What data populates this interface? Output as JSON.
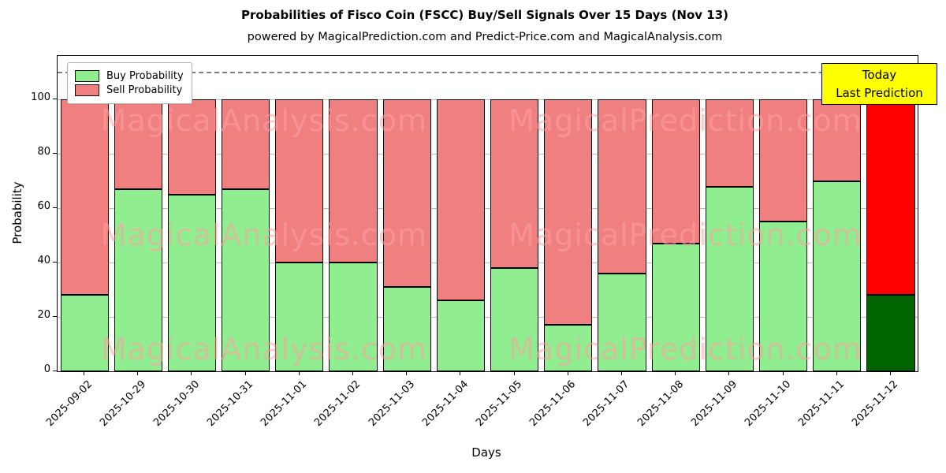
{
  "title": "Probabilities of Fisco Coin (FSCC) Buy/Sell Signals Over 15 Days (Nov 13)",
  "subtitle": "powered by MagicalPrediction.com and Predict-Price.com and MagicalAnalysis.com",
  "chart_data": {
    "type": "bar",
    "stacked": true,
    "title": "Probabilities of Fisco Coin (FSCC) Buy/Sell Signals Over 15 Days (Nov 13)",
    "xlabel": "Days",
    "ylabel": "Probability",
    "ylim": [
      0,
      116
    ],
    "yticks": [
      0,
      20,
      40,
      60,
      80,
      100
    ],
    "grid": true,
    "dashed_line_y": 110,
    "legend_position": "upper left",
    "categories": [
      "2025-09-02",
      "2025-10-29",
      "2025-10-30",
      "2025-10-31",
      "2025-11-01",
      "2025-11-02",
      "2025-11-03",
      "2025-11-04",
      "2025-11-05",
      "2025-11-06",
      "2025-11-07",
      "2025-11-08",
      "2025-11-09",
      "2025-11-10",
      "2025-11-11",
      "2025-11-12"
    ],
    "series": [
      {
        "name": "Buy Probability",
        "values": [
          28,
          67,
          65,
          67,
          40,
          40,
          31,
          26,
          38,
          17,
          36,
          47,
          68,
          55,
          70,
          28
        ]
      },
      {
        "name": "Sell Probability",
        "values": [
          72,
          33,
          35,
          33,
          60,
          60,
          69,
          74,
          62,
          83,
          64,
          53,
          32,
          45,
          30,
          72
        ]
      }
    ],
    "colors": {
      "buy": "#90ee90",
      "sell": "#f08080",
      "buy_last": "#006400",
      "sell_last": "#ff0000",
      "edge": "#000000"
    }
  },
  "legend": {
    "items": [
      {
        "label": "Buy Probability",
        "color": "#90ee90"
      },
      {
        "label": "Sell Probability",
        "color": "#f08080"
      }
    ]
  },
  "annotation": {
    "line1": "Today",
    "line2": "Last Prediction",
    "bg": "#ffff00"
  },
  "watermarks": {
    "left": "MagicalAnalysis.com",
    "right": "MagicalPrediction.com"
  }
}
